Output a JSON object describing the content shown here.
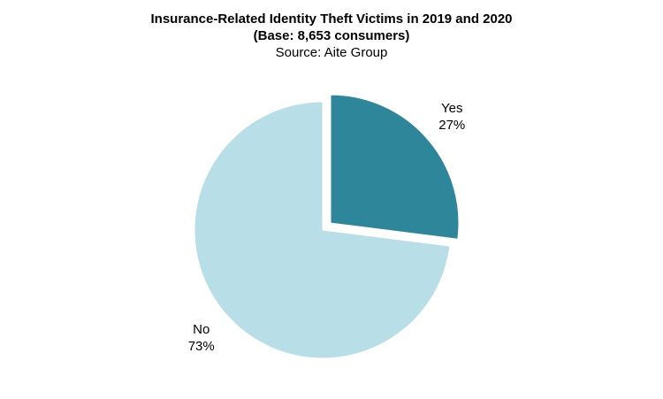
{
  "chart_data": {
    "type": "pie",
    "title": "Insurance-Related Identity Theft Victims in 2019 and 2020",
    "subtitle": "(Base: 8,653 consumers)",
    "source": "Source: Aite Group",
    "slices": [
      {
        "name": "Yes",
        "value": 27,
        "value_label": "27%",
        "color": "#2e869b",
        "exploded": true
      },
      {
        "name": "No",
        "value": 73,
        "value_label": "73%",
        "color": "#b8dee8",
        "exploded": false
      }
    ],
    "legend": "none"
  }
}
